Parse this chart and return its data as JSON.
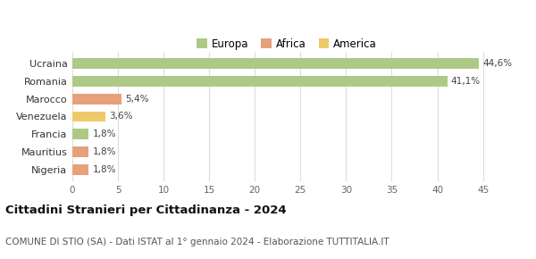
{
  "categories": [
    "Ucraina",
    "Romania",
    "Marocco",
    "Venezuela",
    "Francia",
    "Mauritius",
    "Nigeria"
  ],
  "values": [
    44.6,
    41.1,
    5.4,
    3.6,
    1.8,
    1.8,
    1.8
  ],
  "labels": [
    "44,6%",
    "41,1%",
    "5,4%",
    "3,6%",
    "1,8%",
    "1,8%",
    "1,8%"
  ],
  "colors": [
    "#adc985",
    "#adc985",
    "#e8a07a",
    "#f0c96a",
    "#adc985",
    "#e8a07a",
    "#e8a07a"
  ],
  "legend": [
    {
      "label": "Europa",
      "color": "#adc985"
    },
    {
      "label": "Africa",
      "color": "#e8a07a"
    },
    {
      "label": "America",
      "color": "#f0c96a"
    }
  ],
  "xlim": [
    0,
    47
  ],
  "xticks": [
    0,
    5,
    10,
    15,
    20,
    25,
    30,
    35,
    40,
    45
  ],
  "title": "Cittadini Stranieri per Cittadinanza - 2024",
  "subtitle": "COMUNE DI STIO (SA) - Dati ISTAT al 1° gennaio 2024 - Elaborazione TUTTITALIA.IT",
  "background_color": "#ffffff",
  "grid_color": "#dddddd",
  "bar_height": 0.6
}
